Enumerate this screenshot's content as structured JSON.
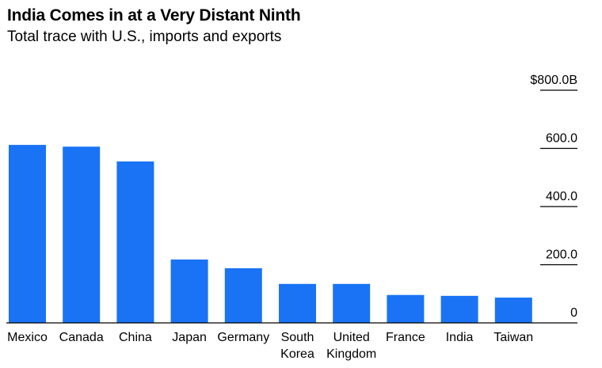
{
  "chart_data": {
    "type": "bar",
    "title": "India Comes in at a Very Distant Ninth",
    "subtitle": "Total trace with U.S., imports and exports",
    "categories": [
      [
        "Mexico"
      ],
      [
        "Canada"
      ],
      [
        "China"
      ],
      [
        "Japan"
      ],
      [
        "Germany"
      ],
      [
        "South",
        "Korea"
      ],
      [
        "United",
        "Kingdom"
      ],
      [
        "France"
      ],
      [
        "India"
      ],
      [
        "Taiwan"
      ]
    ],
    "values": [
      612,
      606,
      555,
      218,
      188,
      134,
      134,
      96,
      93,
      87
    ],
    "ylim": [
      0,
      800
    ],
    "yticks": [
      {
        "value": 800,
        "label": "$800.0B"
      },
      {
        "value": 600,
        "label": "600.0"
      },
      {
        "value": 400,
        "label": "400.0"
      },
      {
        "value": 200,
        "label": "200.0"
      },
      {
        "value": 0,
        "label": "0"
      }
    ],
    "xlabel": "",
    "ylabel": "",
    "bar_color": "#1a73f5",
    "axis_color": "#000000"
  }
}
